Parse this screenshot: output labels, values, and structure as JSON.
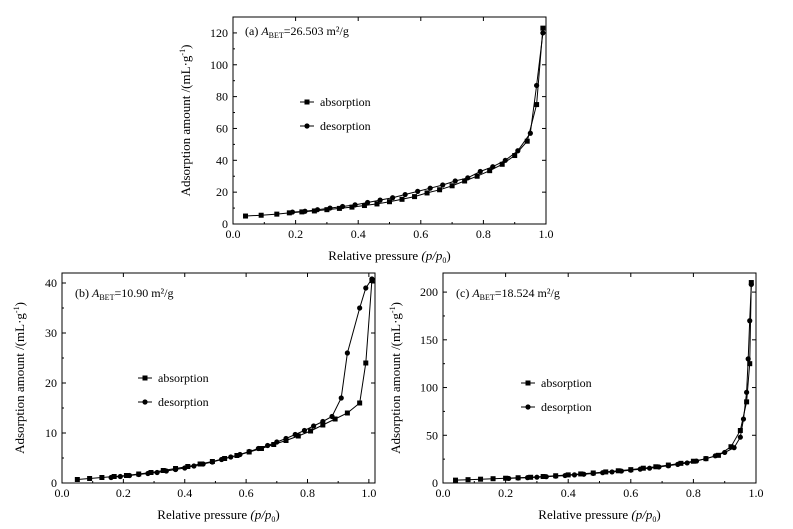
{
  "chart_data": [
    {
      "type": "line",
      "panel": "(a)",
      "annotation": {
        "prefix": "(a)",
        "symbol": "A",
        "subscript": "BET",
        "value": "=26.503 m²/g"
      },
      "xlabel": {
        "text": "Relative pressure",
        "symbol": "(p/p",
        "subscript": "0",
        "suffix": ")"
      },
      "ylabel": {
        "text": "Adsorption amount /(mL·g",
        "sup": "-1",
        "suffix": ")"
      },
      "xlim": [
        0,
        1
      ],
      "ylim": [
        0,
        130
      ],
      "xticks": [
        0,
        0.2,
        0.4,
        0.6,
        0.8,
        1.0
      ],
      "xtick_labels": [
        "0.0",
        "0.2",
        "0.4",
        "0.6",
        "0.8",
        "1.0"
      ],
      "yticks": [
        0,
        20,
        40,
        60,
        80,
        100,
        120
      ],
      "ytick_labels": [
        "0",
        "20",
        "40",
        "60",
        "80",
        "100",
        "120"
      ],
      "legend_position": "middle-left",
      "series": [
        {
          "name": "absorption",
          "marker": "square",
          "x": [
            0.04,
            0.09,
            0.14,
            0.18,
            0.22,
            0.26,
            0.3,
            0.34,
            0.38,
            0.42,
            0.46,
            0.5,
            0.54,
            0.58,
            0.62,
            0.66,
            0.7,
            0.74,
            0.78,
            0.82,
            0.86,
            0.9,
            0.94,
            0.97,
            0.99
          ],
          "y": [
            5,
            5.5,
            6.2,
            7,
            7.6,
            8.2,
            9,
            9.8,
            10.6,
            11.6,
            12.6,
            14,
            15.5,
            17.2,
            19.5,
            21.5,
            24,
            27,
            30,
            33.5,
            37.5,
            43,
            52,
            75,
            123
          ]
        },
        {
          "name": "desorption",
          "marker": "circle",
          "x": [
            0.99,
            0.97,
            0.95,
            0.91,
            0.87,
            0.83,
            0.79,
            0.75,
            0.71,
            0.67,
            0.63,
            0.59,
            0.55,
            0.51,
            0.47,
            0.43,
            0.39,
            0.35,
            0.31,
            0.27,
            0.23,
            0.19
          ],
          "y": [
            120,
            87,
            57,
            46,
            40,
            36,
            33,
            29,
            27,
            24.5,
            22.5,
            20.5,
            18.5,
            16.5,
            15,
            13.5,
            12,
            11,
            10,
            9,
            8,
            7.5
          ]
        }
      ]
    },
    {
      "type": "line",
      "panel": "(b)",
      "annotation": {
        "prefix": "(b)",
        "symbol": "A",
        "subscript": "BET",
        "value": "=10.90 m²/g"
      },
      "xlabel": {
        "text": "Relative pressure",
        "symbol": "(p/p",
        "subscript": "0",
        "suffix": ")"
      },
      "ylabel": {
        "text": "Adsorption amount /(mL·g",
        "sup": "-1",
        "suffix": ")"
      },
      "xlim": [
        0,
        1.02
      ],
      "ylim": [
        0,
        42
      ],
      "xticks": [
        0,
        0.2,
        0.4,
        0.6,
        0.8,
        1.0
      ],
      "xtick_labels": [
        "0.0",
        "0.2",
        "0.4",
        "0.6",
        "0.8",
        "1.0"
      ],
      "yticks": [
        0,
        10,
        20,
        30,
        40
      ],
      "ytick_labels": [
        "0",
        "10",
        "20",
        "30",
        "40"
      ],
      "legend_position": "middle-left",
      "series": [
        {
          "name": "absorption",
          "marker": "square",
          "x": [
            0.05,
            0.09,
            0.13,
            0.17,
            0.21,
            0.25,
            0.29,
            0.33,
            0.37,
            0.41,
            0.45,
            0.49,
            0.53,
            0.57,
            0.61,
            0.65,
            0.69,
            0.73,
            0.77,
            0.81,
            0.85,
            0.89,
            0.93,
            0.97,
            0.99,
            1.01
          ],
          "y": [
            0.7,
            0.9,
            1.1,
            1.3,
            1.5,
            1.8,
            2.1,
            2.5,
            2.9,
            3.3,
            3.8,
            4.3,
            4.9,
            5.5,
            6.2,
            6.9,
            7.7,
            8.5,
            9.4,
            10.4,
            11.6,
            12.8,
            14,
            16,
            24,
            40.5
          ]
        },
        {
          "name": "desorption",
          "marker": "circle",
          "x": [
            1.01,
            0.99,
            0.97,
            0.93,
            0.91,
            0.88,
            0.85,
            0.82,
            0.79,
            0.76,
            0.73,
            0.7,
            0.67,
            0.64,
            0.61,
            0.58,
            0.55,
            0.52,
            0.49,
            0.46,
            0.43,
            0.4,
            0.37,
            0.34,
            0.31,
            0.28,
            0.25,
            0.22,
            0.19,
            0.16
          ],
          "y": [
            40.8,
            39,
            35,
            26,
            17,
            13.3,
            12.3,
            11.4,
            10.5,
            9.7,
            8.9,
            8.2,
            7.5,
            6.9,
            6.3,
            5.7,
            5.2,
            4.7,
            4.2,
            3.8,
            3.4,
            3.0,
            2.7,
            2.4,
            2.1,
            1.9,
            1.7,
            1.5,
            1.3,
            1.1
          ]
        }
      ]
    },
    {
      "type": "line",
      "panel": "(c)",
      "annotation": {
        "prefix": "(c)",
        "symbol": "A",
        "subscript": "BET",
        "value": "=18.524 m²/g"
      },
      "xlabel": {
        "text": "Relative pressure",
        "symbol": "(p/p",
        "subscript": "0",
        "suffix": ")"
      },
      "ylabel": {
        "text": "Adsorption amount /(mL·g",
        "sup": "-1",
        "suffix": ")"
      },
      "xlim": [
        0,
        1
      ],
      "ylim": [
        0,
        220
      ],
      "xticks": [
        0,
        0.2,
        0.4,
        0.6,
        0.8,
        1.0
      ],
      "xtick_labels": [
        "0.0",
        "0.2",
        "0.4",
        "0.6",
        "0.8",
        "1.0"
      ],
      "yticks": [
        0,
        50,
        100,
        150,
        200
      ],
      "ytick_labels": [
        "0",
        "50",
        "100",
        "150",
        "200"
      ],
      "legend_position": "middle-left",
      "series": [
        {
          "name": "absorption",
          "marker": "square",
          "x": [
            0.04,
            0.08,
            0.12,
            0.16,
            0.2,
            0.24,
            0.28,
            0.32,
            0.36,
            0.4,
            0.44,
            0.48,
            0.52,
            0.56,
            0.6,
            0.64,
            0.68,
            0.72,
            0.76,
            0.8,
            0.84,
            0.88,
            0.92,
            0.95,
            0.97,
            0.98,
            0.985
          ],
          "y": [
            3,
            3.5,
            4,
            4.5,
            5,
            5.5,
            6,
            6.8,
            7.6,
            8.5,
            9.5,
            10.5,
            11.6,
            12.8,
            14,
            15.5,
            17,
            18.8,
            20.6,
            22.8,
            25.5,
            29,
            38,
            55,
            85,
            125,
            210
          ]
        },
        {
          "name": "desorption",
          "marker": "circle",
          "x": [
            0.985,
            0.98,
            0.975,
            0.97,
            0.96,
            0.95,
            0.93,
            0.9,
            0.87,
            0.84,
            0.81,
            0.78,
            0.75,
            0.72,
            0.69,
            0.66,
            0.63,
            0.6,
            0.57,
            0.54,
            0.51,
            0.48,
            0.45,
            0.42,
            0.39,
            0.36,
            0.33,
            0.3,
            0.27,
            0.24,
            0.21
          ],
          "y": [
            208,
            170,
            130,
            95,
            67,
            48,
            37,
            32,
            28.5,
            25.5,
            23,
            21,
            19.5,
            18,
            16.8,
            15.5,
            14.5,
            13.5,
            12.5,
            11.6,
            10.8,
            10,
            9.2,
            8.5,
            7.8,
            7.2,
            6.6,
            6.1,
            5.6,
            5.2,
            4.8
          ]
        }
      ]
    }
  ]
}
